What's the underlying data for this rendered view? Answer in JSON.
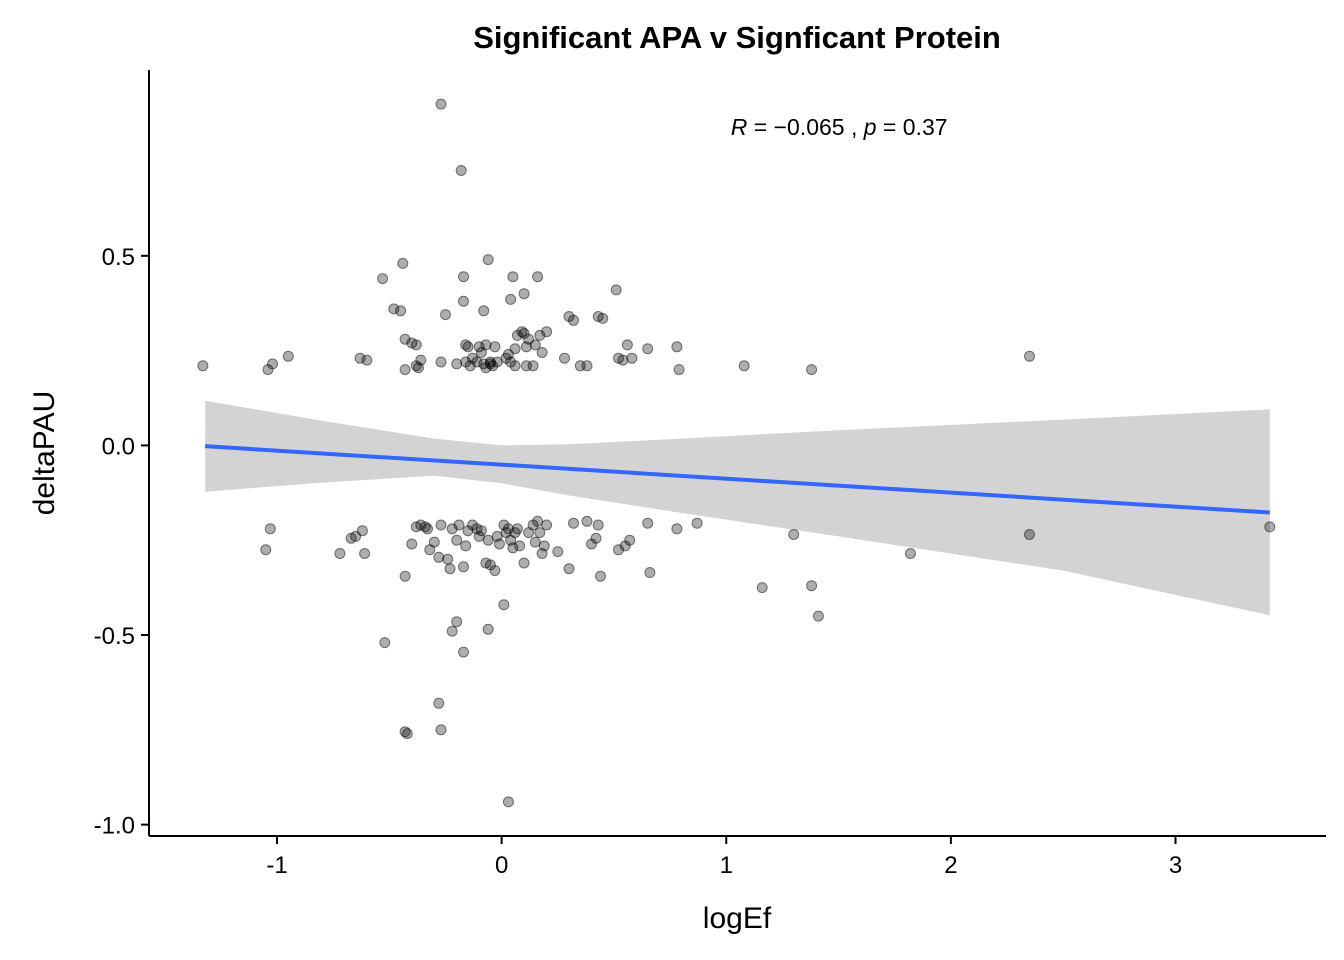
{
  "chart_data": {
    "type": "scatter",
    "title": "Significant APA v Signficant Protein",
    "xlabel": "logEf",
    "ylabel": "deltaPAU",
    "xlim": [
      -1.57,
      3.67
    ],
    "ylim": [
      -1.03,
      0.99
    ],
    "x_ticks": [
      -1,
      0,
      1,
      2,
      3
    ],
    "x_tick_labels": [
      "-1",
      "0",
      "1",
      "2",
      "3"
    ],
    "y_ticks": [
      -1.0,
      -0.5,
      0.0,
      0.5
    ],
    "y_tick_labels": [
      "-1.0",
      "-0.5",
      "0.0",
      "0.5"
    ],
    "grid": false,
    "legend": "none",
    "annotation": {
      "r_symbol": "R",
      "r_text": " = −0.065 , ",
      "p_symbol": "p",
      "p_text": " = 0.37",
      "x": 1.02,
      "y": 0.84
    },
    "colors": {
      "points": "#000000",
      "point_alpha": 0.32,
      "fit_line": "#3366FF",
      "confidence_band": "#D3D3D3"
    },
    "fit": {
      "x": [
        -1.32,
        3.42
      ],
      "y": [
        -0.002,
        -0.177
      ],
      "ci_x": [
        -1.32,
        -0.8,
        -0.3,
        0.0,
        0.3,
        0.8,
        1.5,
        2.5,
        3.42
      ],
      "ci_upper": [
        0.118,
        0.065,
        0.018,
        0.0,
        0.003,
        0.018,
        0.04,
        0.068,
        0.095
      ],
      "ci_lower": [
        -0.122,
        -0.098,
        -0.08,
        -0.1,
        -0.132,
        -0.178,
        -0.24,
        -0.33,
        -0.448
      ]
    },
    "points": {
      "x": [
        -1.33,
        -1.04,
        -1.02,
        -0.95,
        -0.63,
        -0.6,
        -0.53,
        -0.48,
        -0.45,
        -0.44,
        -0.43,
        -0.43,
        -0.4,
        -0.38,
        -0.38,
        -0.37,
        -0.36,
        -0.27,
        -0.25,
        -0.2,
        -0.17,
        -0.17,
        -0.16,
        -0.15,
        -0.14,
        -0.13,
        -0.11,
        -0.1,
        -0.09,
        -0.08,
        -0.07,
        -0.06,
        -0.05,
        -0.04,
        -0.03,
        -0.02,
        0.02,
        0.03,
        0.04,
        0.05,
        0.06,
        0.07,
        0.09,
        0.1,
        0.11,
        0.12,
        0.14,
        0.16,
        0.17,
        0.18,
        0.2,
        0.28,
        0.3,
        0.32,
        0.35,
        0.38,
        0.43,
        0.45,
        0.51,
        0.54,
        0.56,
        0.58,
        0.65,
        0.78,
        0.79,
        1.08,
        1.38,
        2.35,
        -0.27,
        -0.18,
        -0.07,
        0.06,
        0.1,
        0.15,
        0.52,
        -0.05,
        -0.16,
        -0.08,
        0.04,
        0.11,
        -1.05,
        -1.03,
        -0.72,
        -0.67,
        -0.65,
        -0.62,
        -0.61,
        -0.52,
        -0.43,
        -0.4,
        -0.38,
        -0.36,
        -0.34,
        -0.33,
        -0.32,
        -0.3,
        -0.28,
        -0.27,
        -0.24,
        -0.23,
        -0.22,
        -0.2,
        -0.19,
        -0.17,
        -0.16,
        -0.15,
        -0.13,
        -0.11,
        -0.1,
        -0.09,
        -0.07,
        -0.06,
        -0.05,
        -0.03,
        -0.02,
        -0.01,
        0.01,
        0.02,
        0.03,
        0.04,
        0.05,
        0.06,
        0.07,
        0.08,
        0.1,
        0.12,
        0.14,
        0.15,
        0.16,
        0.17,
        0.18,
        0.19,
        0.2,
        0.25,
        0.3,
        0.32,
        0.38,
        0.4,
        0.42,
        0.43,
        0.44,
        0.52,
        0.55,
        0.57,
        0.65,
        0.66,
        0.78,
        0.87,
        1.16,
        1.3,
        1.38,
        1.41,
        1.82,
        2.35,
        3.42,
        -0.43,
        -0.42,
        -0.28,
        -0.27,
        0.03,
        -0.06,
        0.01,
        -0.2,
        -0.22,
        -0.17
      ],
      "y": [
        0.21,
        0.2,
        0.215,
        0.235,
        0.23,
        0.225,
        0.44,
        0.36,
        0.355,
        0.48,
        0.28,
        0.2,
        0.27,
        0.265,
        0.21,
        0.205,
        0.225,
        0.22,
        0.345,
        0.215,
        0.445,
        0.38,
        0.265,
        0.26,
        0.21,
        0.23,
        0.22,
        0.26,
        0.245,
        0.355,
        0.205,
        0.49,
        0.215,
        0.21,
        0.26,
        0.22,
        0.23,
        0.24,
        0.385,
        0.445,
        0.255,
        0.29,
        0.3,
        0.4,
        0.21,
        0.28,
        0.21,
        0.445,
        0.29,
        0.245,
        0.3,
        0.23,
        0.34,
        0.33,
        0.21,
        0.21,
        0.34,
        0.335,
        0.41,
        0.225,
        0.265,
        0.23,
        0.255,
        0.26,
        0.2,
        0.21,
        0.2,
        0.235,
        0.9,
        0.725,
        0.265,
        0.21,
        0.295,
        0.265,
        0.23,
        0.22,
        0.22,
        0.215,
        0.22,
        0.26,
        -0.275,
        -0.22,
        -0.285,
        -0.245,
        -0.24,
        -0.225,
        -0.285,
        -0.52,
        -0.345,
        -0.26,
        -0.215,
        -0.21,
        -0.215,
        -0.22,
        -0.275,
        -0.255,
        -0.295,
        -0.21,
        -0.3,
        -0.325,
        -0.22,
        -0.25,
        -0.21,
        -0.32,
        -0.265,
        -0.225,
        -0.21,
        -0.22,
        -0.24,
        -0.225,
        -0.31,
        -0.25,
        -0.315,
        -0.33,
        -0.24,
        -0.26,
        -0.21,
        -0.23,
        -0.22,
        -0.25,
        -0.27,
        -0.23,
        -0.22,
        -0.265,
        -0.31,
        -0.23,
        -0.21,
        -0.255,
        -0.2,
        -0.23,
        -0.285,
        -0.265,
        -0.21,
        -0.28,
        -0.325,
        -0.205,
        -0.2,
        -0.26,
        -0.245,
        -0.21,
        -0.345,
        -0.275,
        -0.265,
        -0.25,
        -0.205,
        -0.335,
        -0.22,
        -0.205,
        -0.375,
        -0.235,
        -0.37,
        -0.45,
        -0.285,
        -0.235,
        -0.215,
        -0.755,
        -0.76,
        -0.68,
        -0.75,
        -0.94,
        -0.485,
        -0.42,
        -0.465,
        -0.49,
        -0.545
      ]
    }
  }
}
